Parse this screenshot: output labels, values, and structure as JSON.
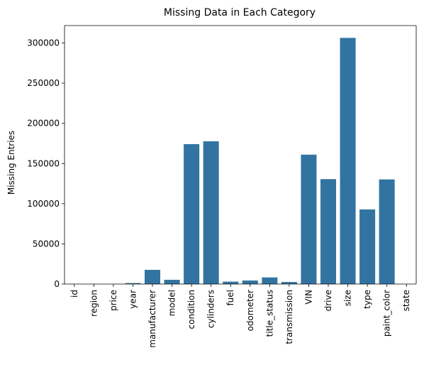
{
  "chart_data": {
    "type": "bar",
    "title": "Missing Data in Each Category",
    "xlabel": "",
    "ylabel": "Missing Entries",
    "categories": [
      "id",
      "region",
      "price",
      "year",
      "manufacturer",
      "model",
      "condition",
      "cylinders",
      "fuel",
      "odometer",
      "title_status",
      "transmission",
      "VIN",
      "drive",
      "size",
      "type",
      "paint_color",
      "state"
    ],
    "values": [
      0,
      0,
      0,
      1205,
      17646,
      5277,
      174104,
      177678,
      3013,
      4400,
      8242,
      2556,
      161042,
      130567,
      306361,
      92858,
      130203,
      0
    ],
    "ylim": [
      0,
      321700
    ],
    "yticks": [
      0,
      50000,
      100000,
      150000,
      200000,
      250000,
      300000
    ],
    "bar_color": "#3274a1",
    "grid": false,
    "legend": "none"
  }
}
